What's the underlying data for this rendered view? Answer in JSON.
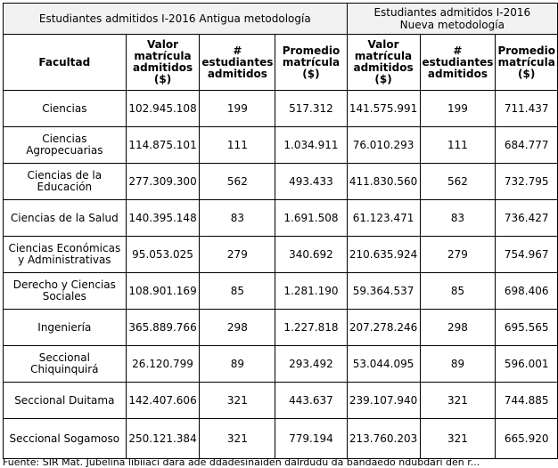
{
  "table": {
    "group_old": "Estudiantes admitidos I-2016 Antigua metodología",
    "group_new_line1": "Estudiantes admitidos I-2016",
    "group_new_line2": "Nueva metodología",
    "headers": {
      "facultad": "Facultad",
      "valor_old": "Valor matrícula admitidos ($)",
      "num_old": "# estudiantes admitidos",
      "prom_old": "Promedio matrícula ($)",
      "valor_new": "Valor matrícula admitidos ($)",
      "num_new": "# estudiantes admitidos",
      "prom_new": "Promedio matrícula ($)"
    },
    "rows": [
      {
        "facultad": "Ciencias",
        "valor_old": "102.945.108",
        "num_old": "199",
        "prom_old": "517.312",
        "valor_new": "141.575.991",
        "num_new": "199",
        "prom_new": "711.437"
      },
      {
        "facultad": "Ciencias Agropecuarias",
        "valor_old": "114.875.101",
        "num_old": "111",
        "prom_old": "1.034.911",
        "valor_new": "76.010.293",
        "num_new": "111",
        "prom_new": "684.777"
      },
      {
        "facultad": "Ciencias de la Educación",
        "valor_old": "277.309.300",
        "num_old": "562",
        "prom_old": "493.433",
        "valor_new": "411.830.560",
        "num_new": "562",
        "prom_new": "732.795"
      },
      {
        "facultad": "Ciencias de la Salud",
        "valor_old": "140.395.148",
        "num_old": "83",
        "prom_old": "1.691.508",
        "valor_new": "61.123.471",
        "num_new": "83",
        "prom_new": "736.427"
      },
      {
        "facultad": "Ciencias Económicas y Administrativas",
        "valor_old": "95.053.025",
        "num_old": "279",
        "prom_old": "340.692",
        "valor_new": "210.635.924",
        "num_new": "279",
        "prom_new": "754.967"
      },
      {
        "facultad": "Derecho y Ciencias Sociales",
        "valor_old": "108.901.169",
        "num_old": "85",
        "prom_old": "1.281.190",
        "valor_new": "59.364.537",
        "num_new": "85",
        "prom_new": "698.406"
      },
      {
        "facultad": "Ingeniería",
        "valor_old": "365.889.766",
        "num_old": "298",
        "prom_old": "1.227.818",
        "valor_new": "207.278.246",
        "num_new": "298",
        "prom_new": "695.565"
      },
      {
        "facultad": "Seccional Chiquinquirá",
        "valor_old": "26.120.799",
        "num_old": "89",
        "prom_old": "293.492",
        "valor_new": "53.044.095",
        "num_new": "89",
        "prom_new": "596.001"
      },
      {
        "facultad": "Seccional Duitama",
        "valor_old": "142.407.606",
        "num_old": "321",
        "prom_old": "443.637",
        "valor_new": "239.107.940",
        "num_new": "321",
        "prom_new": "744.885"
      },
      {
        "facultad": "Seccional Sogamoso",
        "valor_old": "250.121.384",
        "num_old": "321",
        "prom_old": "779.194",
        "valor_new": "213.760.203",
        "num_new": "321",
        "prom_new": "665.920"
      }
    ]
  },
  "footnote": "Fuente: SIR Mat. Jubelina libiiaci dara ade ddadesinaiden dalrdudu da bandaedo ndubdari den r..."
}
